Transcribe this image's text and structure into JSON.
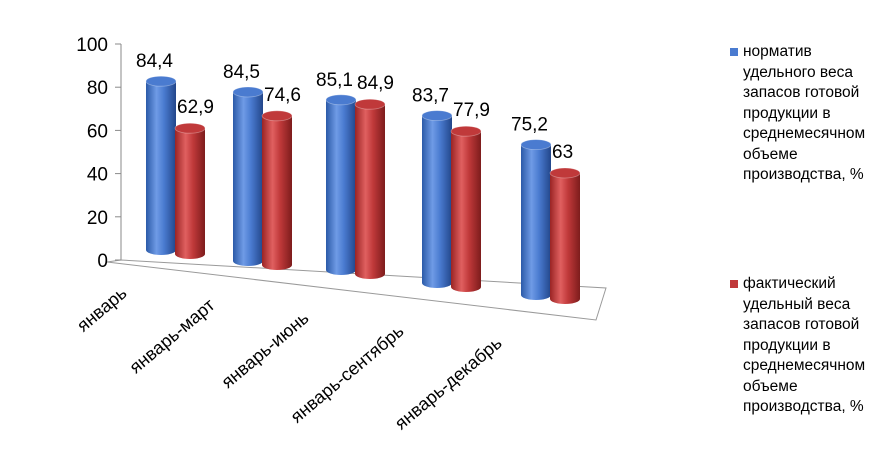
{
  "chart_data": {
    "type": "bar",
    "style": "3d-cylinder",
    "categories": [
      "январь",
      "январь-март",
      "январь-июнь",
      "январь-сентябрь",
      "январь-декабрь"
    ],
    "series": [
      {
        "name": "норматив удельного веса запасов готовой продукции в среднемесячном объеме производства, %",
        "values": [
          84.4,
          84.5,
          85.1,
          83.7,
          75.2
        ],
        "labels": [
          "84,4",
          "84,5",
          "85,1",
          "83,7",
          "75,2"
        ],
        "color": "#4a7bd0"
      },
      {
        "name": "фактический удельный веса запасов готовой продукции в среднемесячном объеме производства, %",
        "values": [
          62.9,
          74.6,
          84.9,
          77.9,
          63.0
        ],
        "labels": [
          "62,9",
          "74,6",
          "84,9",
          "77,9",
          "63"
        ],
        "color": "#c0393a"
      }
    ],
    "ylim": [
      0,
      100
    ],
    "yticks": [
      "0",
      "20",
      "40",
      "60",
      "80",
      "100"
    ],
    "grid": false,
    "legend_position": "right"
  }
}
